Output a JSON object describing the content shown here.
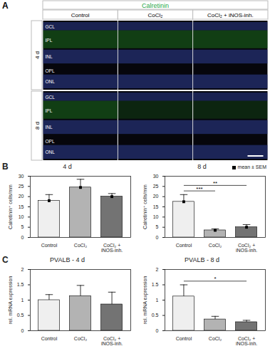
{
  "panel_a": {
    "label": "A",
    "stain": "Calretinin",
    "columns": [
      "Control",
      "CoCl₂",
      "CoCl₂ + iNOS-inh."
    ],
    "rows": [
      "4 d",
      "8 d"
    ],
    "layers": [
      "GCL",
      "IPL",
      "INL",
      "OPL",
      "ONL"
    ]
  },
  "chart_data": [
    {
      "panel_label": "B",
      "type": "bar",
      "title": "4 d",
      "categories": [
        "Control",
        "CoCl₂",
        "CoCl₂ + iNOS-inh."
      ],
      "values": [
        18,
        24.5,
        20
      ],
      "errors": [
        3,
        4,
        1.5
      ],
      "colors": [
        "#efefef",
        "#b3b3b3",
        "#737373"
      ],
      "ylabel": "Calretinin⁺ cells/mm",
      "ylim": [
        0,
        30
      ],
      "yticks": [
        0,
        5,
        10,
        15,
        20,
        25,
        30
      ],
      "marker": "square"
    },
    {
      "type": "bar",
      "title": "8 d",
      "categories": [
        "Control",
        "CoCl₂",
        "CoCl₂ + iNOS-inh."
      ],
      "values": [
        17.5,
        3.5,
        5
      ],
      "errors": [
        3.5,
        0.7,
        1.3
      ],
      "colors": [
        "#efefef",
        "#b3b3b3",
        "#737373"
      ],
      "ylabel": "Calretinin⁺ cells/mm",
      "ylim": [
        0,
        30
      ],
      "yticks": [
        0,
        5,
        10,
        15,
        20,
        25,
        30
      ],
      "marker": "square",
      "significance": [
        {
          "from": 0,
          "to": 1,
          "label": "***"
        },
        {
          "from": 0,
          "to": 2,
          "label": "**"
        }
      ],
      "legend": "top-right",
      "legend_label": "mean ± SEM"
    },
    {
      "panel_label": "C",
      "type": "bar",
      "title": "PVALB - 4 d",
      "categories": [
        "Control",
        "CoCl₂",
        "CoCl₂ + iNOS-inh."
      ],
      "values": [
        1.0,
        1.13,
        0.86
      ],
      "errors": [
        0.18,
        0.35,
        0.4
      ],
      "colors": [
        "#efefef",
        "#b3b3b3",
        "#737373"
      ],
      "ylabel": "rel. mRNA expression",
      "ylim": [
        0,
        2
      ],
      "yticks": [
        0,
        0.5,
        1,
        1.5,
        2
      ]
    },
    {
      "type": "bar",
      "title": "PVALB - 8 d",
      "categories": [
        "Control",
        "CoCl₂",
        "CoCl₂ + iNOS-inh."
      ],
      "values": [
        1.12,
        0.37,
        0.28
      ],
      "errors": [
        0.38,
        0.1,
        0.06
      ],
      "colors": [
        "#efefef",
        "#b3b3b3",
        "#737373"
      ],
      "ylabel": "rel. mRNA expression",
      "ylim": [
        0,
        2
      ],
      "yticks": [
        0,
        0.5,
        1,
        1.5,
        2
      ],
      "significance": [
        {
          "from": 0,
          "to": 2,
          "label": "*"
        }
      ]
    }
  ]
}
